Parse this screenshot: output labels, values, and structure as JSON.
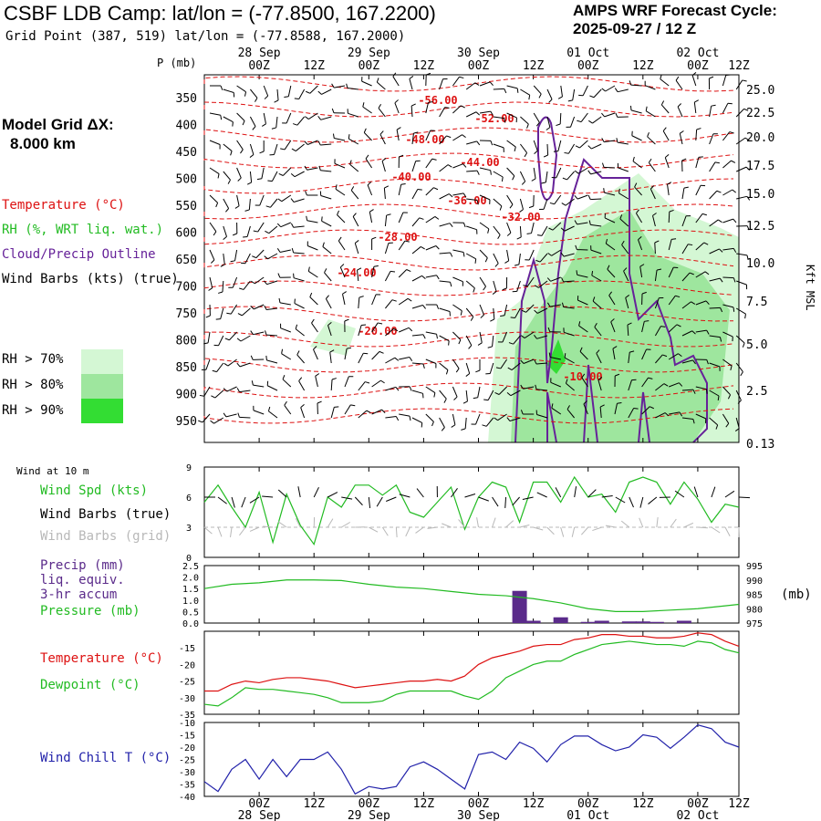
{
  "header": {
    "title": "CSBF LDB Camp:  lat/lon = (-77.8500, 167.2200)",
    "subtitle": "Grid Point (387, 519) lat/lon = (-77.8588, 167.2000)",
    "cycle_line1": "AMPS WRF Forecast Cycle:",
    "cycle_line2": "2025-09-27 / 12  Z"
  },
  "model_grid": {
    "label": "Model Grid ΔX:",
    "value": "8.000 km"
  },
  "colors": {
    "temperature": "#dd1111",
    "rh": "#22bb22",
    "cloud": "#662299",
    "wind": "#000000",
    "wind_grid": "#b8b8b8",
    "pressure": "#22bb22",
    "dewpoint": "#22bb22",
    "windchill": "#2222aa",
    "precip": "#5a2a8a",
    "rh70": "#d4f7d4",
    "rh80": "#9ee69e",
    "rh90": "#33dd33"
  },
  "legend": {
    "temperature": "Temperature (°C)",
    "rh": "RH (%, WRT liq. wat.)",
    "cloud": "Cloud/Precip Outline",
    "wind": "Wind Barbs (kts) (true)",
    "rh70": "RH > 70%",
    "rh80": "RH > 80%",
    "rh90": "RH > 90%"
  },
  "time_axis": {
    "ticks": [
      "00Z",
      "12Z",
      "00Z",
      "12Z",
      "00Z",
      "12Z",
      "00Z",
      "12Z",
      "00Z",
      "12Z"
    ],
    "dates": [
      "28 Sep",
      "29 Sep",
      "30 Sep",
      "01 Oct",
      "02 Oct"
    ]
  },
  "chart_data": [
    {
      "type": "heatmap",
      "name": "time-height cross section",
      "ylabel": "P (mb)",
      "y_right_label": "Kft MSL",
      "pressure_ticks": [
        "350",
        "400",
        "450",
        "500",
        "550",
        "600",
        "650",
        "700",
        "750",
        "800",
        "850",
        "900",
        "950"
      ],
      "height_ticks": [
        "25.0",
        "22.5",
        "20.0",
        "17.5",
        "15.0",
        "12.5",
        "10.0",
        "7.5",
        "5.0",
        "2.5",
        "0.13"
      ],
      "temperature_contour_labels": [
        "-56.00",
        "-52.00",
        "-48.00",
        "-44.00",
        "-40.00",
        "-36.00",
        "-32.00",
        "-28.00",
        "-24.00",
        "-20.00",
        "-10.00"
      ]
    },
    {
      "type": "line",
      "name": "10 m wind speed",
      "heading": "Wind at 10 m",
      "labels": {
        "speed": "Wind Spd (kts)",
        "barbs_true": "Wind Barbs (true)",
        "barbs_grid": "Wind Barbs (grid)"
      },
      "y_ticks": [
        "9",
        "6",
        "3",
        "0"
      ],
      "ylim": [
        0,
        9
      ],
      "x_hours": [
        0,
        3,
        6,
        9,
        12,
        15,
        18,
        21,
        24,
        27,
        30,
        33,
        36,
        39,
        42,
        45,
        48,
        51,
        54,
        57,
        60,
        63,
        66,
        69,
        72,
        75,
        78,
        81,
        84,
        87,
        90,
        93,
        96,
        99,
        102,
        105,
        108,
        111,
        114,
        117
      ],
      "values": [
        5.5,
        7.2,
        5,
        3,
        6.5,
        1.5,
        6.3,
        3.2,
        1.3,
        6,
        5,
        7.2,
        7.2,
        6.2,
        7.2,
        4.5,
        4,
        5.5,
        7,
        2.8,
        6,
        7.5,
        7,
        3.5,
        7.5,
        7.5,
        5.5,
        8,
        6,
        6.3,
        4.5,
        7.5,
        8,
        7.5,
        5.3,
        7.5,
        5.8,
        3.5,
        5.3,
        5
      ]
    },
    {
      "type": "bar",
      "name": "precip and pressure",
      "labels": {
        "precip_1": "Precip (mm)",
        "precip_2": "liq. equiv.",
        "precip_3": "3-hr accum",
        "pressure": "Pressure (mb)",
        "unit_right": "(mb)"
      },
      "precip_ticks": [
        "2.5",
        "2.0",
        "1.5",
        "1.0",
        "0.5",
        "0.0"
      ],
      "precip_ylim": [
        0,
        2.5
      ],
      "pressure_ticks": [
        "995",
        "990",
        "985",
        "980",
        "975"
      ],
      "pressure_ylim": [
        975,
        995
      ],
      "precip_bars": [
        {
          "hour": 69,
          "value": 1.4
        },
        {
          "hour": 72,
          "value": 0.1
        },
        {
          "hour": 78,
          "value": 0.25
        },
        {
          "hour": 84,
          "value": 0.05
        },
        {
          "hour": 87,
          "value": 0.1
        },
        {
          "hour": 93,
          "value": 0.07
        },
        {
          "hour": 96,
          "value": 0.07
        },
        {
          "hour": 99,
          "value": 0.05
        },
        {
          "hour": 105,
          "value": 0.1
        }
      ],
      "pressure_x": [
        0,
        6,
        12,
        18,
        24,
        30,
        36,
        42,
        48,
        54,
        60,
        66,
        72,
        78,
        84,
        90,
        96,
        102,
        108,
        114,
        117
      ],
      "pressure_values": [
        987,
        988.5,
        989,
        990,
        990,
        989.8,
        988.5,
        987.5,
        987,
        986,
        985,
        984.5,
        983.5,
        982,
        980,
        979,
        979,
        979.5,
        980,
        981,
        981.5
      ]
    },
    {
      "type": "line",
      "name": "temperature and dewpoint",
      "labels": {
        "temperature": "Temperature (°C)",
        "dewpoint": "Dewpoint (°C)"
      },
      "y_ticks": [
        "-15",
        "-20",
        "-25",
        "-30",
        "-35"
      ],
      "ylim": [
        -35,
        -10
      ],
      "x": [
        0,
        3,
        6,
        9,
        12,
        15,
        18,
        21,
        24,
        27,
        30,
        33,
        36,
        39,
        42,
        45,
        48,
        51,
        54,
        57,
        60,
        63,
        66,
        69,
        72,
        75,
        78,
        81,
        84,
        87,
        90,
        93,
        96,
        99,
        102,
        105,
        108,
        111,
        114,
        117
      ],
      "temperature": [
        -28,
        -28,
        -26,
        -25,
        -25.5,
        -24.5,
        -24,
        -24,
        -24.5,
        -25,
        -26,
        -27,
        -26.5,
        -26,
        -25.5,
        -25,
        -25,
        -24.5,
        -25,
        -23.5,
        -20,
        -18,
        -17,
        -16,
        -14.5,
        -14,
        -14,
        -12.5,
        -12,
        -11,
        -11,
        -11.5,
        -11.5,
        -12,
        -12,
        -11.5,
        -10.5,
        -11,
        -13,
        -14.5
      ],
      "dewpoint": [
        -32,
        -32.5,
        -30,
        -27,
        -27.5,
        -27.5,
        -28,
        -28.5,
        -29,
        -30,
        -31.5,
        -31.5,
        -31.5,
        -31,
        -29,
        -28,
        -28,
        -28,
        -28,
        -29.5,
        -30.5,
        -28,
        -24,
        -22,
        -20,
        -19,
        -19,
        -17,
        -15.5,
        -14,
        -13.5,
        -13,
        -13.5,
        -14,
        -14,
        -14.5,
        -13,
        -13.5,
        -15.5,
        -16.5
      ]
    },
    {
      "type": "line",
      "name": "wind chill",
      "labels": {
        "windchill": "Wind Chill T (°C)"
      },
      "y_ticks": [
        "-10",
        "-15",
        "-20",
        "-25",
        "-30",
        "-35",
        "-40"
      ],
      "ylim": [
        -40,
        -10
      ],
      "x": [
        0,
        3,
        6,
        9,
        12,
        15,
        18,
        21,
        24,
        27,
        30,
        33,
        36,
        39,
        42,
        45,
        48,
        51,
        54,
        57,
        60,
        63,
        66,
        69,
        72,
        75,
        78,
        81,
        84,
        87,
        90,
        93,
        96,
        99,
        102,
        105,
        108,
        111,
        114,
        117
      ],
      "values": [
        -34,
        -38,
        -29,
        -25,
        -33,
        -25,
        -32,
        -25,
        -25,
        -22,
        -29,
        -39,
        -36,
        -37,
        -36,
        -28,
        -26,
        -29,
        -33,
        -37,
        -23,
        -22,
        -25,
        -18,
        -20.5,
        -26,
        -19,
        -15.5,
        -15.5,
        -19,
        -21.5,
        -20,
        -15,
        -16,
        -20.5,
        -16,
        -11,
        -12.5,
        -18,
        -20
      ]
    }
  ]
}
